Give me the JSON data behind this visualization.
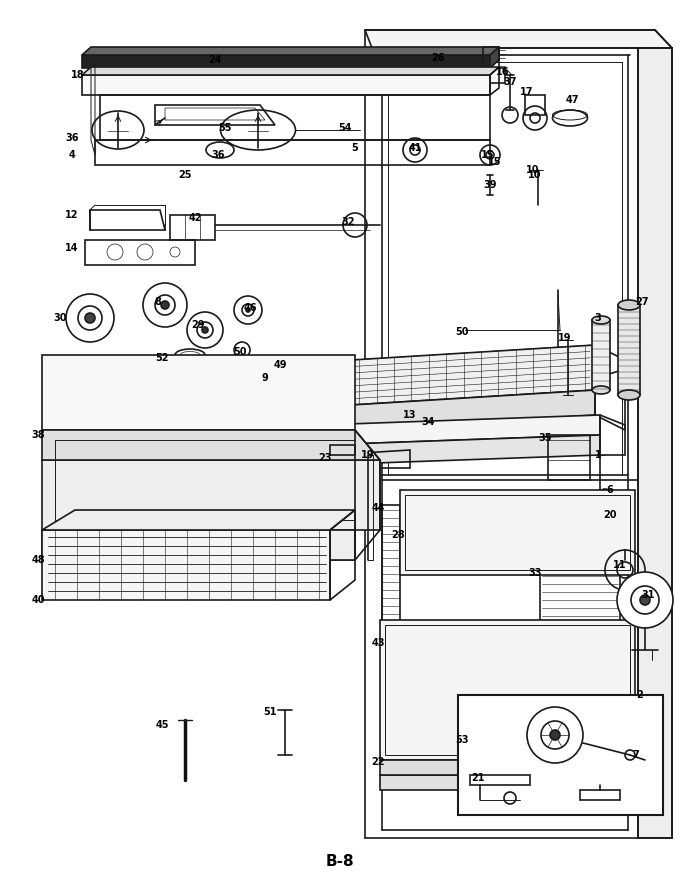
{
  "page_label": "B-8",
  "background_color": "#ffffff",
  "line_color": "#1a1a1a",
  "figsize": [
    6.8,
    8.9
  ],
  "dpi": 100
}
